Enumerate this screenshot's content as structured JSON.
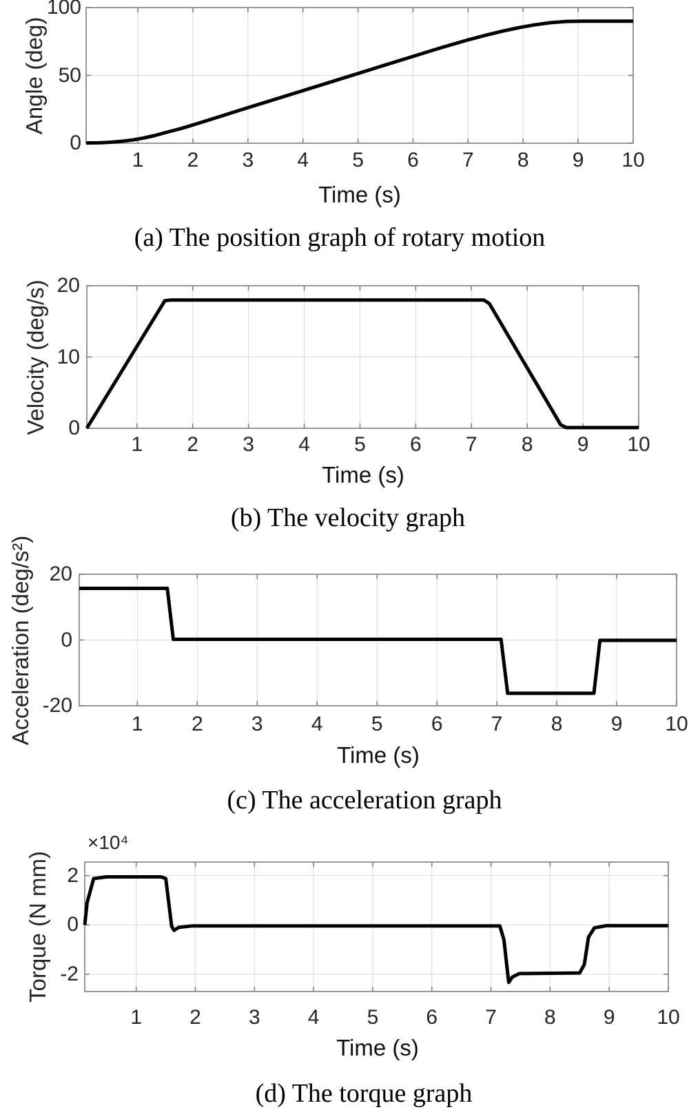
{
  "figure": {
    "background": "#ffffff",
    "line_color": "#000000",
    "grid_color": "#d9d9d9",
    "axis_color": "#7f7f7f",
    "tick_text_color": "#262626",
    "caption_color": "#000000"
  },
  "chart_data": [
    {
      "id": "position",
      "type": "line",
      "caption": "(a) The position graph of rotary motion",
      "xlabel": "Time (s)",
      "ylabel": "Angle (deg)",
      "y_exponent_label": "",
      "xlim": [
        0.06,
        10
      ],
      "ylim": [
        0,
        100
      ],
      "xticks": [
        1,
        2,
        3,
        4,
        5,
        6,
        7,
        8,
        9,
        10
      ],
      "yticks": [
        0,
        50,
        100
      ],
      "grid": true,
      "legend": "none",
      "series": [
        {
          "name": "angle",
          "points": [
            [
              0.06,
              0.2
            ],
            [
              0.3,
              0.3
            ],
            [
              0.5,
              0.7
            ],
            [
              0.7,
              1.4
            ],
            [
              0.9,
              2.4
            ],
            [
              1.1,
              3.8
            ],
            [
              1.3,
              5.6
            ],
            [
              1.5,
              7.8
            ],
            [
              1.8,
              11.0
            ],
            [
              2.1,
              14.7
            ],
            [
              2.5,
              19.8
            ],
            [
              3,
              26.2
            ],
            [
              3.5,
              32.5
            ],
            [
              4,
              38.8
            ],
            [
              4.5,
              45.1
            ],
            [
              5,
              51.4
            ],
            [
              5.5,
              57.7
            ],
            [
              6,
              64.0
            ],
            [
              6.5,
              70.3
            ],
            [
              7,
              76.2
            ],
            [
              7.3,
              79.4
            ],
            [
              7.6,
              82.4
            ],
            [
              7.9,
              85.0
            ],
            [
              8.2,
              87.2
            ],
            [
              8.5,
              88.9
            ],
            [
              8.8,
              89.8
            ],
            [
              9.1,
              90
            ],
            [
              10,
              90
            ]
          ]
        }
      ]
    },
    {
      "id": "velocity",
      "type": "line",
      "caption": "(b) The velocity graph",
      "xlabel": "Time (s)",
      "ylabel": "Velocity (deg/s)",
      "y_exponent_label": "",
      "xlim": [
        0.1,
        10
      ],
      "ylim": [
        0,
        20
      ],
      "xticks": [
        1,
        2,
        3,
        4,
        5,
        6,
        7,
        8,
        9,
        10
      ],
      "yticks": [
        0,
        10,
        20
      ],
      "grid": true,
      "legend": "none",
      "series": [
        {
          "name": "velocity",
          "points": [
            [
              0.1,
              0
            ],
            [
              1.5,
              17.9
            ],
            [
              1.62,
              18
            ],
            [
              7.22,
              18
            ],
            [
              7.32,
              17.5
            ],
            [
              8.6,
              0.5
            ],
            [
              8.7,
              0.1
            ],
            [
              10,
              0.1
            ]
          ]
        }
      ]
    },
    {
      "id": "acceleration",
      "type": "line",
      "caption": "(c) The acceleration graph",
      "xlabel": "Time (s)",
      "ylabel": "Acceleration (deg/s²)",
      "y_exponent_label": "",
      "xlim": [
        0.03,
        10
      ],
      "ylim": [
        -20,
        20
      ],
      "xticks": [
        1,
        2,
        3,
        4,
        5,
        6,
        7,
        8,
        9,
        10
      ],
      "yticks": [
        -20,
        0,
        20
      ],
      "grid": true,
      "legend": "none",
      "series": [
        {
          "name": "acceleration",
          "points": [
            [
              0.03,
              15.7
            ],
            [
              1.5,
              15.7
            ],
            [
              1.6,
              0.2
            ],
            [
              7.07,
              0.2
            ],
            [
              7.18,
              -16.2
            ],
            [
              8.62,
              -16.2
            ],
            [
              8.72,
              -0.1
            ],
            [
              10,
              -0.1
            ]
          ]
        }
      ]
    },
    {
      "id": "torque",
      "type": "line",
      "caption": "(d) The torque graph",
      "xlabel": "Time (s)",
      "ylabel": "Torque (N mm)",
      "y_exponent_label": "×10⁴",
      "xlim": [
        0.13,
        10
      ],
      "ylim": [
        -2.7,
        2.55
      ],
      "xticks": [
        1,
        2,
        3,
        4,
        5,
        6,
        7,
        8,
        9,
        10
      ],
      "yticks": [
        -2,
        0,
        2
      ],
      "grid": true,
      "legend": "none",
      "series": [
        {
          "name": "torque",
          "points": [
            [
              0.13,
              0
            ],
            [
              0.17,
              0.9
            ],
            [
              0.28,
              1.88
            ],
            [
              0.5,
              1.95
            ],
            [
              1.42,
              1.95
            ],
            [
              1.5,
              1.88
            ],
            [
              1.6,
              -0.05
            ],
            [
              1.64,
              -0.22
            ],
            [
              1.72,
              -0.1
            ],
            [
              1.95,
              -0.04
            ],
            [
              7.15,
              -0.04
            ],
            [
              7.22,
              -0.6
            ],
            [
              7.3,
              -2.33
            ],
            [
              7.36,
              -2.12
            ],
            [
              7.48,
              -1.97
            ],
            [
              8.5,
              -1.95
            ],
            [
              8.58,
              -1.6
            ],
            [
              8.65,
              -0.5
            ],
            [
              8.75,
              -0.12
            ],
            [
              8.95,
              -0.03
            ],
            [
              10,
              -0.03
            ]
          ]
        }
      ]
    }
  ]
}
